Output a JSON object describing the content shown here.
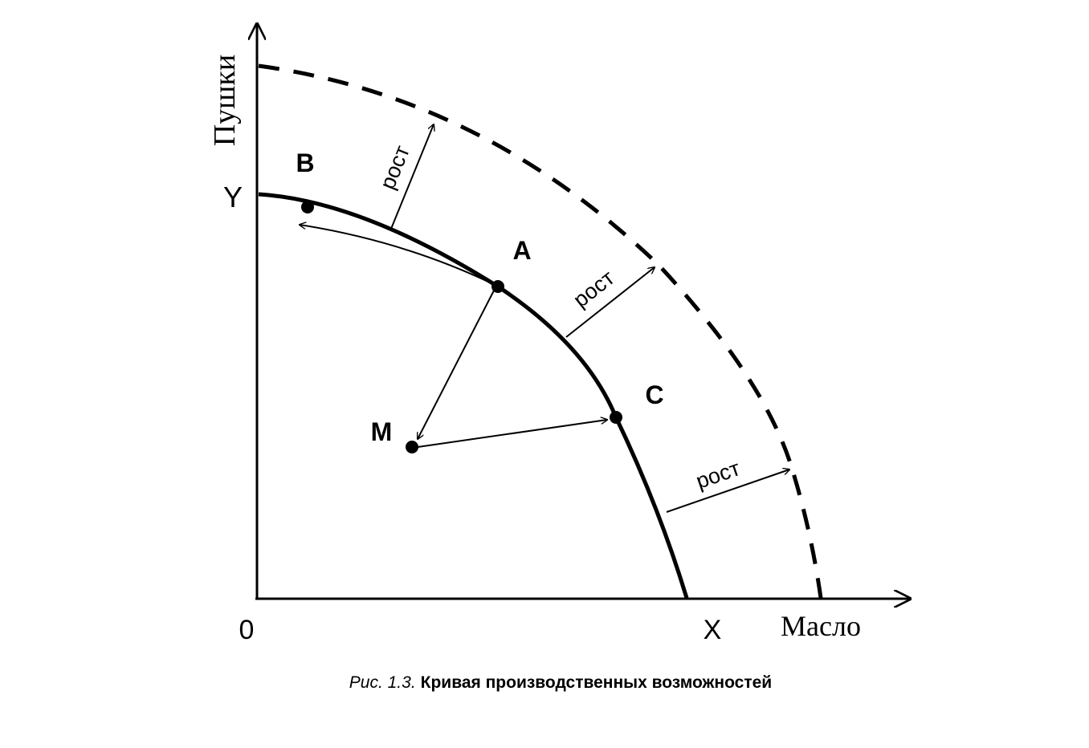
{
  "axes": {
    "y_label": "Пушки",
    "x_label": "Масло",
    "origin": "0",
    "y_intercept": "Y",
    "x_intercept": "X"
  },
  "points": [
    {
      "label": "B"
    },
    {
      "label": "A"
    },
    {
      "label": "C"
    },
    {
      "label": "M"
    }
  ],
  "growth_labels": [
    "рост",
    "рост",
    "рост"
  ],
  "caption": {
    "number": "Рис. 1.3.",
    "title": "Кривая производственных возможностей"
  }
}
